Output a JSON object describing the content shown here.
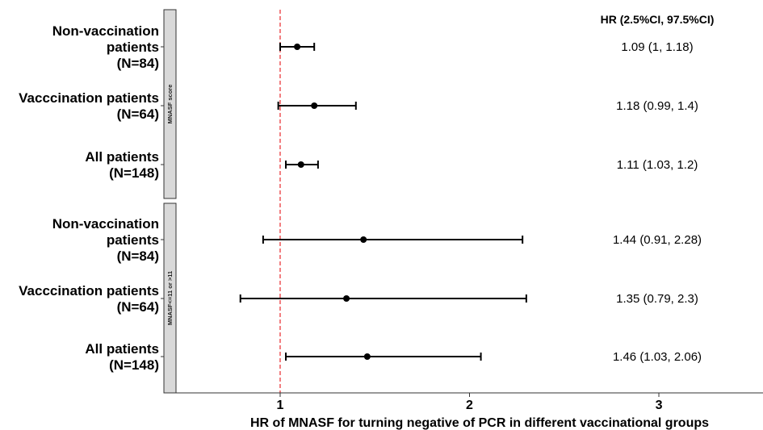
{
  "chart_data": {
    "type": "forest",
    "xlabel": "HR of MNASF for turning negative of PCR in different vaccinational groups",
    "value_column_header": "HR (2.5%CI, 97.5%CI)",
    "xlim": [
      0.45,
      3.55
    ],
    "x_ticks": [
      1,
      2,
      3
    ],
    "reference_line": 1,
    "reference_line_color": "#e8282b",
    "strip_fill": "#d9d9d9",
    "panels": [
      {
        "strip_label": "MNASF score",
        "rows": [
          {
            "label_lines": [
              "Non-vaccination",
              "patients",
              "(N=84)"
            ],
            "hr": 1.09,
            "lower": 1,
            "upper": 1.18,
            "text": "1.09 (1, 1.18)"
          },
          {
            "label_lines": [
              "Vacccination patients",
              "(N=64)"
            ],
            "hr": 1.18,
            "lower": 0.99,
            "upper": 1.4,
            "text": "1.18 (0.99, 1.4)"
          },
          {
            "label_lines": [
              "All patients",
              "(N=148)"
            ],
            "hr": 1.11,
            "lower": 1.03,
            "upper": 1.2,
            "text": "1.11 (1.03, 1.2)"
          }
        ]
      },
      {
        "strip_label": "MNASF<=11 or >11",
        "rows": [
          {
            "label_lines": [
              "Non-vaccination",
              "patients",
              "(N=84)"
            ],
            "hr": 1.44,
            "lower": 0.91,
            "upper": 2.28,
            "text": "1.44 (0.91, 2.28)"
          },
          {
            "label_lines": [
              "Vacccination patients",
              "(N=64)"
            ],
            "hr": 1.35,
            "lower": 0.79,
            "upper": 2.3,
            "text": "1.35 (0.79, 2.3)"
          },
          {
            "label_lines": [
              "All patients",
              "(N=148)"
            ],
            "hr": 1.46,
            "lower": 1.03,
            "upper": 2.06,
            "text": "1.46 (1.03, 2.06)"
          }
        ]
      }
    ]
  }
}
